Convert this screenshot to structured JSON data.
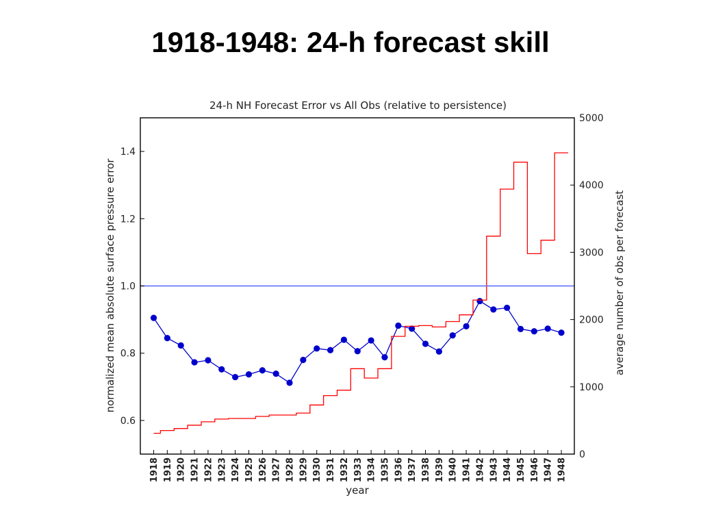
{
  "slide": {
    "title": "1918-1948: 24-h forecast skill"
  },
  "chart_data": {
    "type": "line",
    "title": "24-h NH Forecast Error vs All Obs (relative to persistence)",
    "xlabel": "year",
    "ylabel": "normalized mean absolute surface pressure error",
    "y2label": "average number of obs per forecast",
    "categories": [
      "1918",
      "1919",
      "1920",
      "1921",
      "1922",
      "1923",
      "1924",
      "1925",
      "1926",
      "1927",
      "1928",
      "1929",
      "1930",
      "1931",
      "1932",
      "1933",
      "1934",
      "1935",
      "1936",
      "1937",
      "1938",
      "1939",
      "1940",
      "1941",
      "1942",
      "1943",
      "1944",
      "1945",
      "1946",
      "1947",
      "1948"
    ],
    "ylim": [
      0.5,
      1.5
    ],
    "y_ticks": [
      "0.6",
      "0.8",
      "1.0",
      "1.2",
      "1.4"
    ],
    "y2lim": [
      0,
      5000
    ],
    "y2_ticks": [
      "0",
      "1000",
      "2000",
      "3000",
      "4000",
      "5000"
    ],
    "grid": false,
    "series": [
      {
        "kind": "line-markers",
        "axis": "left",
        "color": "#0000cc",
        "values": [
          0.905,
          0.845,
          0.823,
          0.773,
          0.779,
          0.752,
          0.729,
          0.737,
          0.749,
          0.739,
          0.712,
          0.78,
          0.814,
          0.809,
          0.84,
          0.806,
          0.838,
          0.788,
          0.882,
          0.873,
          0.828,
          0.805,
          0.853,
          0.88,
          0.955,
          0.93,
          0.935,
          0.872,
          0.865,
          0.873,
          0.861
        ]
      },
      {
        "kind": "step",
        "axis": "right",
        "color": "#ff0000",
        "values": [
          310,
          350,
          380,
          430,
          480,
          520,
          530,
          530,
          560,
          580,
          580,
          610,
          730,
          870,
          950,
          1270,
          1130,
          1270,
          1750,
          1900,
          1910,
          1890,
          1970,
          2070,
          2290,
          3240,
          3940,
          4340,
          2980,
          3180,
          4480
        ]
      },
      {
        "kind": "reference-line",
        "axis": "left",
        "color": "#5566ff",
        "value": 1.0
      }
    ]
  }
}
